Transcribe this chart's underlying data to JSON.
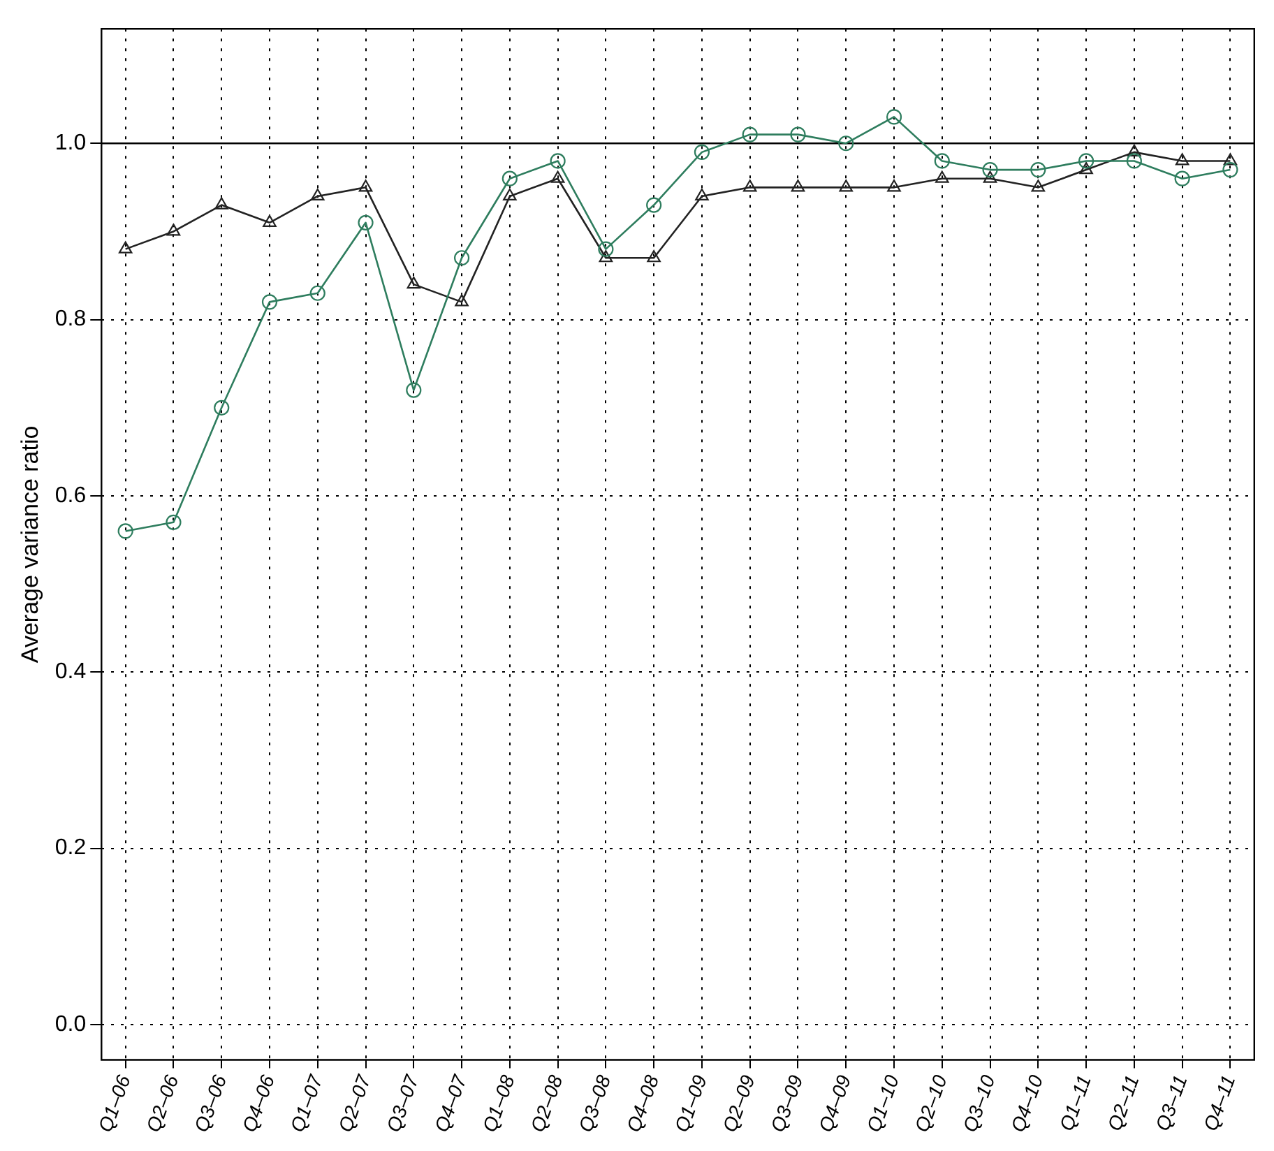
{
  "chart_data": {
    "type": "line",
    "ylabel": "Average variance ratio",
    "categories": [
      "Q1–06",
      "Q2–06",
      "Q3–06",
      "Q4–06",
      "Q1–07",
      "Q2–07",
      "Q3–07",
      "Q4–07",
      "Q1–08",
      "Q2–08",
      "Q3–08",
      "Q4–08",
      "Q1–09",
      "Q2–09",
      "Q3–09",
      "Q4–09",
      "Q1–10",
      "Q2–10",
      "Q3–10",
      "Q4–10",
      "Q1–11",
      "Q2–11",
      "Q3–11",
      "Q4–11"
    ],
    "series": [
      {
        "color": "#2e7d5e",
        "marker": "circle",
        "values": [
          0.56,
          0.57,
          0.7,
          0.82,
          0.83,
          0.91,
          0.72,
          0.87,
          0.96,
          0.98,
          0.88,
          0.93,
          0.99,
          1.01,
          1.01,
          1.0,
          1.03,
          0.98,
          0.97,
          0.97,
          0.98,
          0.98,
          0.96,
          0.97
        ]
      },
      {
        "color": "#222222",
        "marker": "triangle",
        "values": [
          0.88,
          0.9,
          0.93,
          0.91,
          0.94,
          0.95,
          0.84,
          0.82,
          0.94,
          0.96,
          0.87,
          0.87,
          0.94,
          0.95,
          0.95,
          0.95,
          0.95,
          0.96,
          0.96,
          0.95,
          0.97,
          0.99,
          0.98,
          0.98
        ]
      }
    ],
    "ylim": [
      -0.04,
      1.13
    ],
    "yticks": [
      {
        "value": 0,
        "label": "0.0"
      },
      0.2,
      0.4,
      0.6,
      0.8,
      {
        "value": 1,
        "label": "1.0"
      }
    ],
    "grid": true,
    "legend": false,
    "line_style": "solid",
    "ref_lines": [
      {
        "axis": "y",
        "value": 1,
        "color": "#000000"
      }
    ]
  }
}
